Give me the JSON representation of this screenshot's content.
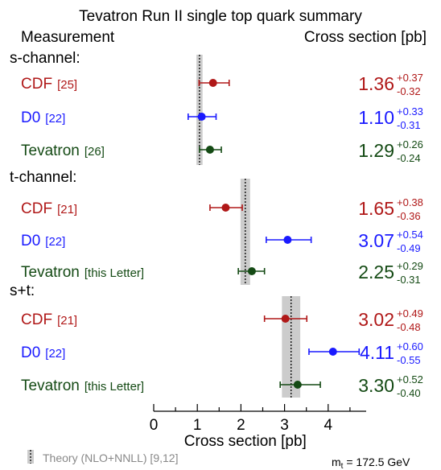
{
  "chart_data": {
    "type": "scatter",
    "title": "Tevatron Run II single top quark summary",
    "header_left": "Measurement",
    "header_right": "Cross section [pb]",
    "xlabel": "Cross section [pb]",
    "xlim": [
      0,
      4.8
    ],
    "xticks": [
      "0",
      "1",
      "2",
      "3",
      "4"
    ],
    "colors": {
      "CDF": "#b01818",
      "D0": "#1a1aff",
      "Tevatron": "#144a14",
      "theory_band": "#cccccc"
    },
    "groups": [
      {
        "label": "s-channel:",
        "theory": {
          "central": 1.05,
          "low": 0.98,
          "high": 1.12
        },
        "measurements": [
          {
            "name": "CDF",
            "ref": "[25]",
            "exp": "CDF",
            "value": 1.36,
            "value_text": "1.36",
            "plus": 0.37,
            "plus_text": "+0.37",
            "minus": 0.32,
            "minus_text": "-0.32"
          },
          {
            "name": "D0",
            "ref": "[22]",
            "exp": "D0",
            "value": 1.1,
            "value_text": "1.10",
            "plus": 0.33,
            "plus_text": "+0.33",
            "minus": 0.31,
            "minus_text": "-0.31"
          },
          {
            "name": "Tevatron",
            "ref": "[26]",
            "exp": "Tevatron",
            "value": 1.29,
            "value_text": "1.29",
            "plus": 0.26,
            "plus_text": "+0.26",
            "minus": 0.24,
            "minus_text": "-0.24"
          }
        ]
      },
      {
        "label": "t-channel:",
        "theory": {
          "central": 2.1,
          "low": 1.99,
          "high": 2.21
        },
        "measurements": [
          {
            "name": "CDF",
            "ref": "[21]",
            "exp": "CDF",
            "value": 1.65,
            "value_text": "1.65",
            "plus": 0.38,
            "plus_text": "+0.38",
            "minus": 0.36,
            "minus_text": "-0.36"
          },
          {
            "name": "D0",
            "ref": "[22]",
            "exp": "D0",
            "value": 3.07,
            "value_text": "3.07",
            "plus": 0.54,
            "plus_text": "+0.54",
            "minus": 0.49,
            "minus_text": "-0.49"
          },
          {
            "name": "Tevatron",
            "ref": "[this Letter]",
            "exp": "Tevatron",
            "value": 2.25,
            "value_text": "2.25",
            "plus": 0.29,
            "plus_text": "+0.29",
            "minus": 0.31,
            "minus_text": "-0.31"
          }
        ]
      },
      {
        "label": "s+t:",
        "theory": {
          "central": 3.15,
          "low": 2.94,
          "high": 3.36
        },
        "measurements": [
          {
            "name": "CDF",
            "ref": "[21]",
            "exp": "CDF",
            "value": 3.02,
            "value_text": "3.02",
            "plus": 0.49,
            "plus_text": "+0.49",
            "minus": 0.48,
            "minus_text": "-0.48"
          },
          {
            "name": "D0",
            "ref": "[22]",
            "exp": "D0",
            "value": 4.11,
            "value_text": "4.11",
            "plus": 0.6,
            "plus_text": "+0.60",
            "minus": 0.55,
            "minus_text": "-0.55"
          },
          {
            "name": "Tevatron",
            "ref": "[this Letter]",
            "exp": "Tevatron",
            "value": 3.3,
            "value_text": "3.30",
            "plus": 0.52,
            "plus_text": "+0.52",
            "minus": 0.4,
            "minus_text": "-0.40"
          }
        ]
      }
    ],
    "legend": {
      "label": "Theory (NLO+NNLL) [9,12]",
      "placement": "bottom-left"
    },
    "mass_note": {
      "symbol": "m",
      "subscript": "t",
      "text": " = 172.5 GeV"
    }
  }
}
